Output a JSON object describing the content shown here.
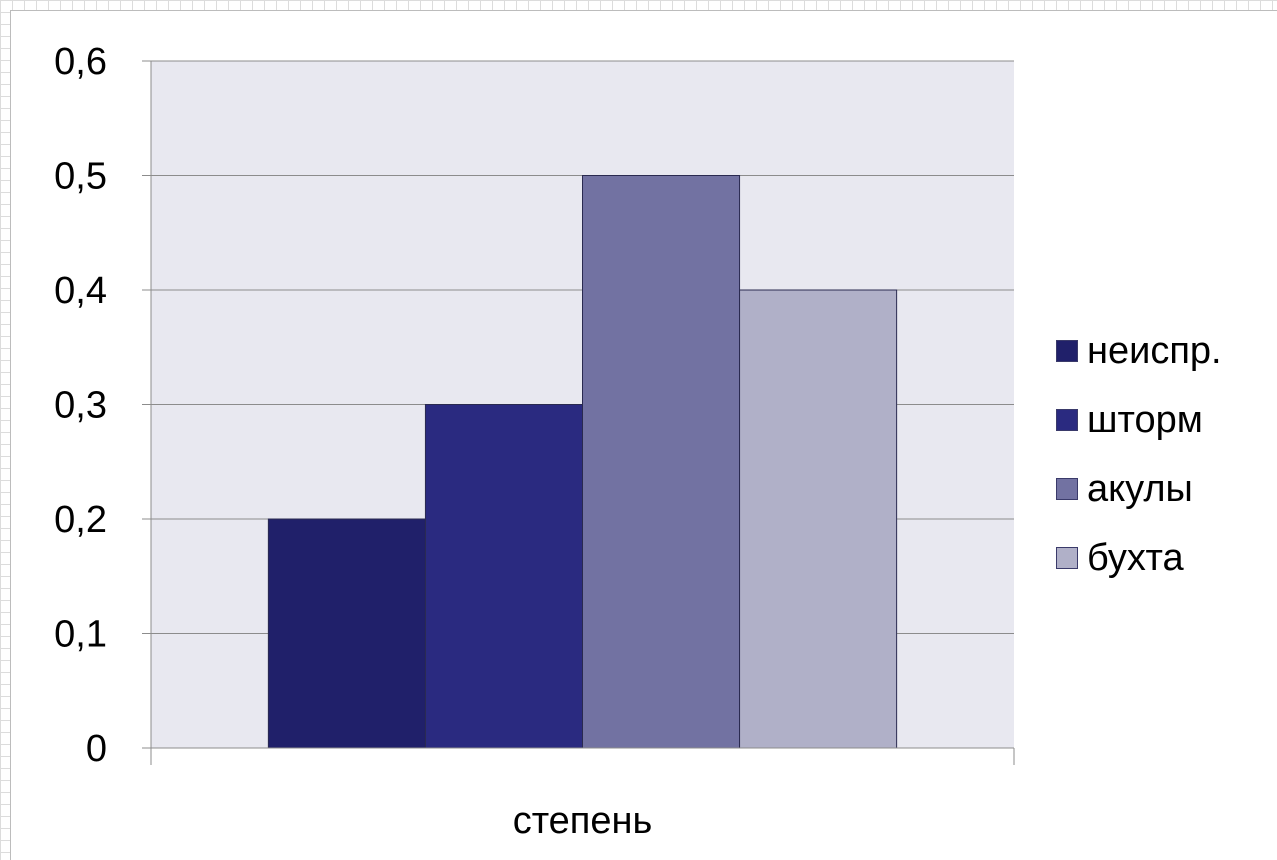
{
  "chart_data": {
    "type": "bar",
    "categories": [
      "степень"
    ],
    "series": [
      {
        "name": "неиспр.",
        "values": [
          0.2
        ],
        "color": "#20206a"
      },
      {
        "name": "шторм",
        "values": [
          0.3
        ],
        "color": "#2a2a80"
      },
      {
        "name": "акулы",
        "values": [
          0.5
        ],
        "color": "#7272a2"
      },
      {
        "name": "бухта",
        "values": [
          0.4
        ],
        "color": "#b0b0c8"
      }
    ],
    "yticks": [
      "0",
      "0,1",
      "0,2",
      "0,3",
      "0,4",
      "0,5",
      "0,6"
    ],
    "ylim": [
      0,
      0.6
    ],
    "plot_background": "#e8e8f0",
    "gridlines": true,
    "legend_position": "right"
  }
}
